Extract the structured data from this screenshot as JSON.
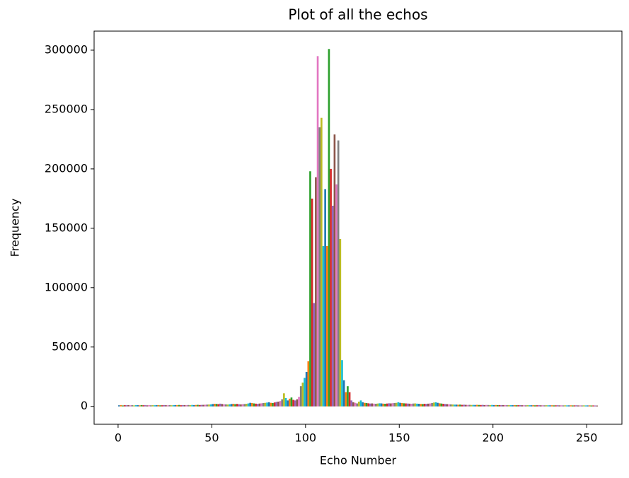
{
  "chart_data": {
    "type": "histogram",
    "title": "Plot of all the echos",
    "x_label": "Echo Number",
    "y_label": "Frequency",
    "colors": [
      "#1f77b4",
      "#ff7f0e",
      "#2ca02c",
      "#d62728",
      "#9467bd",
      "#8c564b",
      "#e377c2",
      "#7f7f7f",
      "#bcbd22",
      "#17becf"
    ],
    "bins": [
      0,
      1,
      2,
      3,
      4,
      5,
      6,
      7,
      8,
      9,
      10,
      11,
      12,
      13,
      14,
      15,
      16,
      17,
      18,
      19,
      20,
      21,
      22,
      23,
      24,
      25,
      26,
      27,
      28,
      29,
      30,
      31,
      32,
      33,
      34,
      35,
      36,
      37,
      38,
      39,
      40,
      41,
      42,
      43,
      44,
      45,
      46,
      47,
      48,
      49,
      50,
      51,
      52,
      53,
      54,
      55,
      56,
      57,
      58,
      59,
      60,
      61,
      62,
      63,
      64,
      65,
      66,
      67,
      68,
      69,
      70,
      71,
      72,
      73,
      74,
      75,
      76,
      77,
      78,
      79,
      80,
      81,
      82,
      83,
      84,
      85,
      86,
      87,
      88,
      89,
      90,
      91,
      92,
      93,
      94,
      95,
      96,
      97,
      98,
      99,
      100,
      101,
      102,
      103,
      104,
      105,
      106,
      107,
      108,
      109,
      110,
      111,
      112,
      113,
      114,
      115,
      116,
      117,
      118,
      119,
      120,
      121,
      122,
      123,
      124,
      125,
      126,
      127,
      128,
      129,
      130,
      131,
      132,
      133,
      134,
      135,
      136,
      137,
      138,
      139,
      140,
      141,
      142,
      143,
      144,
      145,
      146,
      147,
      148,
      149,
      150,
      151,
      152,
      153,
      154,
      155,
      156,
      157,
      158,
      159,
      160,
      161,
      162,
      163,
      164,
      165,
      166,
      167,
      168,
      169,
      170,
      171,
      172,
      173,
      174,
      175,
      176,
      177,
      178,
      179,
      180,
      181,
      182,
      183,
      184,
      185,
      186,
      187,
      188,
      189,
      190,
      191,
      192,
      193,
      194,
      195,
      196,
      197,
      198,
      199,
      200,
      201,
      202,
      203,
      204,
      205,
      206,
      207,
      208,
      209,
      210,
      211,
      212,
      213,
      214,
      215,
      216,
      217,
      218,
      219,
      220,
      221,
      222,
      223,
      224,
      225,
      226,
      227,
      228,
      229,
      230,
      231,
      232,
      233,
      234,
      235,
      236,
      237,
      238,
      239,
      240,
      241,
      242,
      243,
      244,
      245,
      246,
      247,
      248,
      249,
      250,
      251,
      252,
      253,
      254,
      255,
      256
    ],
    "values": [
      900,
      1100,
      800,
      1000,
      950,
      1050,
      900,
      1000,
      850,
      1000,
      1000,
      900,
      1100,
      950,
      1000,
      850,
      1050,
      900,
      1000,
      950,
      1000,
      1100,
      900,
      950,
      1050,
      1000,
      900,
      1100,
      950,
      1000,
      1100,
      1000,
      1200,
      950,
      1050,
      1100,
      1000,
      1150,
      1050,
      1200,
      1100,
      1200,
      1300,
      1150,
      1250,
      1300,
      1400,
      1500,
      1600,
      1700,
      2000,
      2200,
      2100,
      1900,
      2300,
      2000,
      1800,
      1700,
      1600,
      1800,
      2000,
      2200,
      1900,
      2100,
      1800,
      1700,
      1900,
      2000,
      2200,
      2500,
      3000,
      2800,
      2500,
      2300,
      2100,
      2400,
      2600,
      2800,
      3000,
      3200,
      3500,
      3000,
      2800,
      3300,
      3800,
      4000,
      4500,
      6000,
      11000,
      7000,
      5000,
      6500,
      7500,
      5500,
      5000,
      6000,
      8000,
      17000,
      20000,
      24000,
      29000,
      38000,
      198000,
      175000,
      87000,
      193000,
      295000,
      235000,
      243000,
      135000,
      183000,
      135000,
      301000,
      200000,
      169000,
      229000,
      187000,
      224000,
      141000,
      39000,
      22000,
      12000,
      17000,
      12000,
      5000,
      3500,
      3000,
      2500,
      4000,
      5000,
      3500,
      3000,
      2800,
      2600,
      2400,
      2500,
      2300,
      2200,
      2400,
      2600,
      2500,
      2300,
      2200,
      2400,
      2600,
      2500,
      2700,
      2800,
      3000,
      3500,
      3000,
      2800,
      2600,
      2500,
      2400,
      2300,
      2200,
      2400,
      2500,
      2300,
      2200,
      2100,
      2000,
      2200,
      2100,
      2300,
      2500,
      2800,
      3200,
      3500,
      3000,
      2600,
      2400,
      2200,
      2000,
      1900,
      1800,
      1700,
      1600,
      1500,
      1500,
      1400,
      1500,
      1300,
      1400,
      1300,
      1200,
      1300,
      1200,
      1250,
      1200,
      1300,
      1200,
      1150,
      1250,
      1100,
      1200,
      1150,
      1100,
      1200,
      1100,
      1150,
      1050,
      1100,
      1000,
      1100,
      1050,
      1000,
      1100,
      1000,
      1000,
      1050,
      950,
      1000,
      1050,
      950,
      1000,
      900,
      1000,
      950,
      950,
      1000,
      900,
      950,
      1000,
      900,
      950,
      900,
      950,
      900,
      900,
      950,
      850,
      900,
      950,
      850,
      900,
      850,
      900,
      850,
      850,
      900,
      800,
      850,
      900,
      800,
      850,
      800,
      850,
      800,
      800,
      850,
      750,
      800,
      750,
      700
    ],
    "xlim": [
      -12.8,
      268.8
    ],
    "xticks": [
      0,
      50,
      100,
      150,
      200,
      250
    ],
    "ylim": [
      -15050,
      316050
    ],
    "yticks": [
      0,
      50000,
      100000,
      150000,
      200000,
      250000,
      300000
    ]
  }
}
